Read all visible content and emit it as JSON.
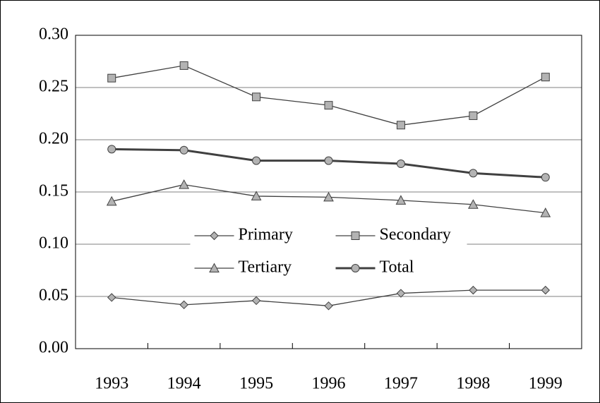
{
  "chart_data": {
    "type": "line",
    "categories": [
      "1993",
      "1994",
      "1995",
      "1996",
      "1997",
      "1998",
      "1999"
    ],
    "series": [
      {
        "name": "Primary",
        "color": "#404040",
        "marker": "diamond",
        "line_width": 1.3,
        "values": [
          0.049,
          0.042,
          0.046,
          0.041,
          0.053,
          0.056,
          0.056
        ]
      },
      {
        "name": "Secondary",
        "color": "#404040",
        "marker": "square",
        "line_width": 1.3,
        "values": [
          0.259,
          0.271,
          0.241,
          0.233,
          0.214,
          0.223,
          0.26
        ]
      },
      {
        "name": "Tertiary",
        "color": "#404040",
        "marker": "triangle",
        "line_width": 1.3,
        "values": [
          0.141,
          0.157,
          0.146,
          0.145,
          0.142,
          0.138,
          0.13
        ]
      },
      {
        "name": "Total",
        "color": "#404040",
        "marker": "circle",
        "line_width": 3,
        "values": [
          0.191,
          0.19,
          0.18,
          0.18,
          0.177,
          0.168,
          0.164
        ]
      }
    ],
    "marker_fill": "#b3b3b3",
    "ylim": [
      0,
      0.3
    ],
    "yticks": [
      {
        "value": 0,
        "label": "0.00"
      },
      {
        "value": 0.05,
        "label": "0.05"
      },
      {
        "value": 0.1,
        "label": "0.10"
      },
      {
        "value": 0.15,
        "label": "0.15"
      },
      {
        "value": 0.2,
        "label": "0.20"
      },
      {
        "value": 0.25,
        "label": "0.25"
      },
      {
        "value": 0.3,
        "label": "0.30"
      }
    ],
    "grid": true,
    "legend": "center"
  }
}
